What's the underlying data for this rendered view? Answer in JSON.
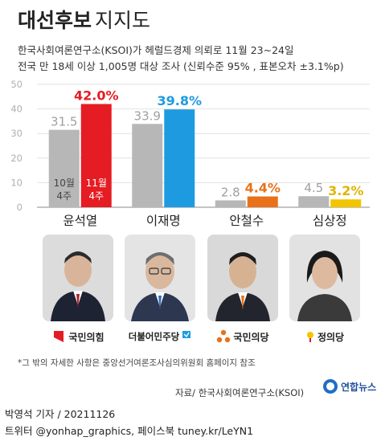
{
  "header": {
    "title_bold": "대선후보",
    "title_rest": "지지도",
    "subtitle_line1": "한국사회여론연구소(KSOI)가 헤럴드경제 의뢰로 11월 23~24일",
    "subtitle_line2": "전국 만 18세 이상 1,005명 대상 조사 (신뢰수준 95% , 표본오차 ±3.1%p)"
  },
  "chart_data": {
    "type": "bar",
    "categories": [
      "윤석열",
      "이재명",
      "안철수",
      "심상정"
    ],
    "series": [
      {
        "name": "10월 4주",
        "values": [
          31.5,
          33.9,
          2.8,
          4.5
        ],
        "color": "#b7b7b7"
      },
      {
        "name": "11월 4주",
        "values": [
          42.0,
          39.8,
          4.4,
          3.2
        ],
        "colors": [
          "#e51c23",
          "#1e9be0",
          "#e8711a",
          "#f2c500"
        ]
      }
    ],
    "value_labels": [
      [
        "31.5",
        "33.9",
        "2.8",
        "4.5"
      ],
      [
        "42.0%",
        "39.8%",
        "4.4%",
        "3.2%"
      ]
    ],
    "label_colors": {
      "old": "#a0a0a0",
      "new": [
        "#e51c23",
        "#1e9be0",
        "#e8711a",
        "#e0b400"
      ]
    },
    "ylim": [
      0,
      50
    ],
    "yticks": [
      "0",
      "10",
      "20",
      "30",
      "40",
      "50"
    ],
    "grid": true
  },
  "parties": [
    {
      "name": "국민의힘",
      "color": "#e51c23",
      "icon": "ppp-logo-icon"
    },
    {
      "name": "더불어민주당",
      "color": "#1e9be0",
      "icon": "democratic-party-flag-icon"
    },
    {
      "name": "국민의당",
      "color": "#e8711a",
      "icon": "peoples-party-logo-icon"
    },
    {
      "name": "정의당",
      "color": "#222222",
      "icon": "justice-party-logo-icon"
    }
  ],
  "candidate_photos": [
    "candidate-photo-yoon-icon",
    "candidate-photo-lee-icon",
    "candidate-photo-ahn-icon",
    "candidate-photo-sim-icon"
  ],
  "footer": {
    "note": "*그 밖의 자세한 사항은 중앙선거여론조사심의위원회 홈페이지 참조",
    "source": "자료/ 한국사회여론연구소(KSOI)",
    "agency": "연합뉴스",
    "byline": "박영석 기자 / 20211126",
    "social": "트위터 @yonhap_graphics, 페이스북 tuney.kr/LeYN1"
  }
}
